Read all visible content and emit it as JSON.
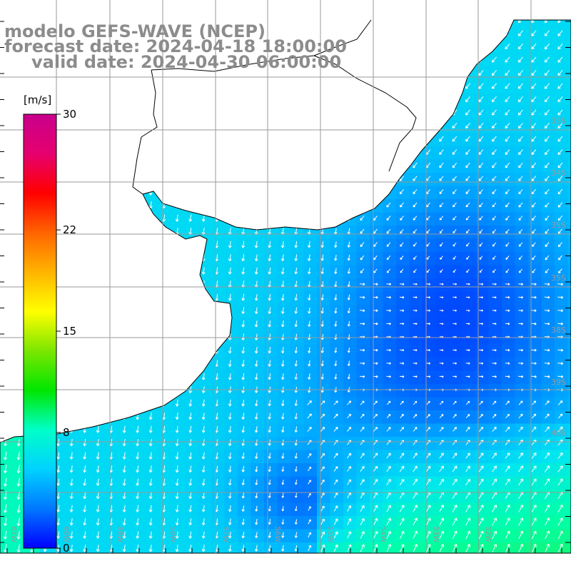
{
  "title": {
    "line1": "modelo GEFS-WAVE (NCEP)",
    "line2": "forecast date: 2024-04-18 18:00:00",
    "line3": "valid date: 2024-04-30 06:00:00"
  },
  "colorbar": {
    "unit": "[m/s]",
    "min": 0,
    "max": 30,
    "ticks": [
      {
        "label": "30",
        "value": 30
      },
      {
        "label": "22",
        "value": 22
      },
      {
        "label": "15",
        "value": 15
      },
      {
        "label": "8",
        "value": 8
      },
      {
        "label": "0",
        "value": 0
      }
    ],
    "colors": [
      "#0000ff",
      "#0078ff",
      "#00d2ff",
      "#00ffc8",
      "#00e600",
      "#7ce600",
      "#ffff00",
      "#ffb400",
      "#ff6400",
      "#ff0000",
      "#e6006e",
      "#c8008c"
    ]
  },
  "map": {
    "lon_range": [
      -62,
      -51.5
    ],
    "lat_range": [
      -41,
      -31
    ],
    "grid_color": "#9a9a9a",
    "lat_labels": [
      "33S",
      "34S",
      "35S",
      "35S",
      "38S",
      "39S",
      "40S"
    ],
    "lon_labels": [
      "61W",
      "60W",
      "59W",
      "58W",
      "57W",
      "56W",
      "55W",
      "54W",
      "53W",
      "52W"
    ],
    "land_color": "#ffffff",
    "coast_color": "#000000",
    "arrow_color": "#ffffff"
  }
}
